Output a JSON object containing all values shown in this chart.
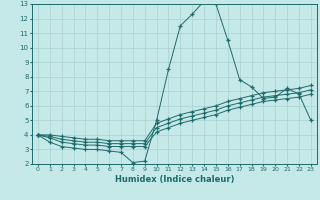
{
  "xlabel": "Humidex (Indice chaleur)",
  "bg_color": "#c5e8e8",
  "grid_color": "#aad0d0",
  "line_color": "#1e6b6b",
  "xlim": [
    -0.5,
    23.5
  ],
  "ylim": [
    2,
    13
  ],
  "xticks": [
    0,
    1,
    2,
    3,
    4,
    5,
    6,
    7,
    8,
    9,
    10,
    11,
    12,
    13,
    14,
    15,
    16,
    17,
    18,
    19,
    20,
    21,
    22,
    23
  ],
  "yticks": [
    2,
    3,
    4,
    5,
    6,
    7,
    8,
    9,
    10,
    11,
    12,
    13
  ],
  "series": [
    {
      "x": [
        0,
        1,
        2,
        3,
        4,
        5,
        6,
        7,
        8,
        9,
        10,
        11,
        12,
        13,
        14,
        15,
        16,
        17,
        18,
        19,
        20,
        21,
        22,
        23
      ],
      "y": [
        4,
        3.5,
        3.2,
        3.1,
        3.0,
        3.0,
        2.9,
        2.8,
        2.1,
        2.2,
        5.0,
        8.5,
        11.5,
        12.3,
        13.2,
        13.0,
        10.5,
        7.8,
        7.3,
        6.5,
        6.6,
        7.2,
        6.8,
        5.0
      ]
    },
    {
      "x": [
        0,
        1,
        2,
        3,
        4,
        5,
        6,
        7,
        8,
        9,
        10,
        11,
        12,
        13,
        14,
        15,
        16,
        17,
        18,
        19,
        20,
        21,
        22,
        23
      ],
      "y": [
        4.0,
        3.8,
        3.5,
        3.4,
        3.3,
        3.3,
        3.2,
        3.2,
        3.2,
        3.2,
        4.2,
        4.5,
        4.8,
        5.0,
        5.2,
        5.4,
        5.7,
        5.9,
        6.1,
        6.3,
        6.4,
        6.5,
        6.6,
        6.8
      ]
    },
    {
      "x": [
        0,
        1,
        2,
        3,
        4,
        5,
        6,
        7,
        8,
        9,
        10,
        11,
        12,
        13,
        14,
        15,
        16,
        17,
        18,
        19,
        20,
        21,
        22,
        23
      ],
      "y": [
        4.0,
        3.9,
        3.7,
        3.6,
        3.5,
        3.5,
        3.4,
        3.4,
        3.4,
        3.4,
        4.5,
        4.8,
        5.1,
        5.3,
        5.5,
        5.7,
        6.0,
        6.2,
        6.4,
        6.6,
        6.7,
        6.8,
        6.9,
        7.1
      ]
    },
    {
      "x": [
        0,
        1,
        2,
        3,
        4,
        5,
        6,
        7,
        8,
        9,
        10,
        11,
        12,
        13,
        14,
        15,
        16,
        17,
        18,
        19,
        20,
        21,
        22,
        23
      ],
      "y": [
        4.0,
        4.0,
        3.9,
        3.8,
        3.7,
        3.7,
        3.6,
        3.6,
        3.6,
        3.6,
        4.8,
        5.1,
        5.4,
        5.6,
        5.8,
        6.0,
        6.3,
        6.5,
        6.7,
        6.9,
        7.0,
        7.1,
        7.2,
        7.4
      ]
    }
  ]
}
